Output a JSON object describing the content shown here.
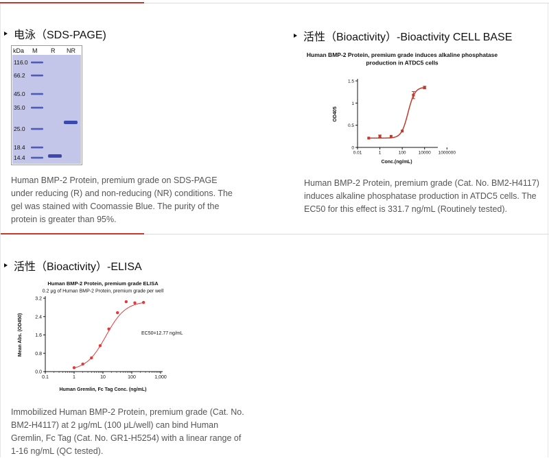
{
  "sds_section": {
    "heading": "电泳（SDS-PAGE)",
    "gel": {
      "columns": [
        "kDa",
        "M",
        "R",
        "NR"
      ],
      "markers": [
        "116.0",
        "66.2",
        "45.0",
        "35.0",
        "25.0",
        "18.4",
        "14.4"
      ],
      "colors": {
        "background": "#c3c6e8",
        "band": "#3a48b0"
      }
    },
    "description": "Human BMP-2 Protein, premium grade on SDS-PAGE under reducing (R) and non-reducing (NR) conditions. The gel was stained with Coomassie Blue. The purity of the protein is greater than 95%."
  },
  "cell_section": {
    "heading": "活性（Bioactivity）-Bioactivity CELL BASE",
    "description": "Human BMP-2 Protein, premium grade (Cat. No. BM2-H4117) induces alkaline phosphatase production in ATDC5 cells. The EC50 for this effect is 331.7 ng/mL (Routinely tested)."
  },
  "elisa_section": {
    "heading": "活性（Bioactivity）-ELISA",
    "description": "Immobilized Human BMP-2 Protein, premium grade (Cat. No. BM2-H4117) at 2 μg/mL (100 μL/well) can bind Human Gremlin, Fc Tag (Cat. No. GR1-H5254) with a linear range of 1-16 ng/mL (QC tested)."
  },
  "chart_data": [
    {
      "type": "scatter",
      "title": "Human BMP-2 Protein, premium grade induces alkaline phosphatase",
      "subtitle": "production in ATDC5 cells",
      "xlabel": "Conc.(ng/mL)",
      "ylabel": "OD405",
      "x_scale": "log",
      "xlim": [
        0.01,
        100000
      ],
      "ylim": [
        0,
        1.5
      ],
      "xticks": [
        "0.01",
        "1",
        "100",
        "10000",
        "1000000"
      ],
      "yticks": [
        "0",
        "0.5",
        "1",
        "1.5"
      ],
      "color": "#c0392b",
      "series": [
        {
          "x": [
            0.1,
            1,
            10,
            100,
            1000,
            10000
          ],
          "y": [
            0.21,
            0.25,
            0.25,
            0.37,
            1.18,
            1.35
          ]
        }
      ],
      "grid": false
    },
    {
      "type": "scatter",
      "title": "Human BMP-2 Protein, premium grade ELISA",
      "subtitle": "0.2 μg of Human BMP-2 Protein, premium grade per well",
      "xlabel": "Human Gremlin, Fc Tag Conc. (ng/mL)",
      "ylabel": "Mean Abs. (OD450)",
      "annotation": "EC50=12.77 ng/mL",
      "x_scale": "log",
      "xlim": [
        0.1,
        1000
      ],
      "ylim": [
        0,
        3.2
      ],
      "xticks": [
        "0.1",
        "1",
        "10",
        "100",
        "1,000"
      ],
      "yticks": [
        "0.0",
        "0.8",
        "1.6",
        "2.4",
        "3.2"
      ],
      "color": "#e03a3a",
      "series": [
        {
          "x": [
            1,
            2,
            4,
            8,
            16,
            32,
            64,
            128,
            256
          ],
          "y": [
            0.17,
            0.33,
            0.6,
            1.13,
            1.86,
            2.57,
            3.05,
            3.0,
            3.02
          ]
        }
      ],
      "grid": false
    }
  ]
}
